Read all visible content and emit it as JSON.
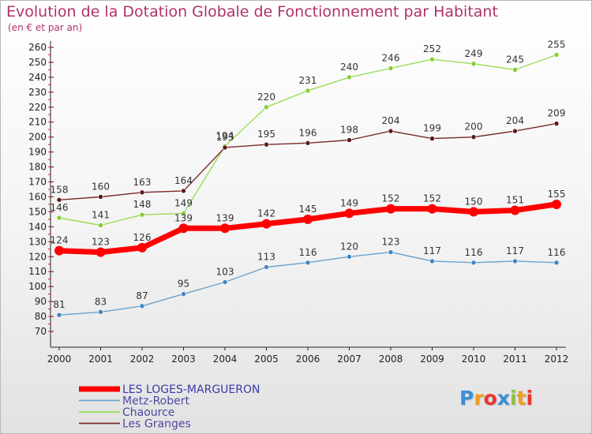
{
  "chart_data": {
    "type": "line",
    "title": "Evolution de la Dotation Globale de Fonctionnement par Habitant",
    "subtitle": "(en € et par an)",
    "xlabel": "",
    "ylabel": "",
    "x": [
      2000,
      2001,
      2002,
      2003,
      2004,
      2005,
      2006,
      2007,
      2008,
      2009,
      2010,
      2011,
      2012
    ],
    "ylim": [
      70,
      260
    ],
    "ytick_step": 10,
    "grid": false,
    "legend_position": "bottom-left",
    "series": [
      {
        "name": "Chaource",
        "color": "#99dd55",
        "marker": "#88cc33",
        "values": [
          146,
          141,
          148,
          149,
          194,
          220,
          231,
          240,
          246,
          252,
          249,
          245,
          255
        ]
      },
      {
        "name": "Les Granges",
        "color": "#7a2a2a",
        "marker": "#5c1a1a",
        "values": [
          158,
          160,
          163,
          164,
          193,
          195,
          196,
          198,
          204,
          199,
          200,
          204,
          209
        ]
      },
      {
        "name": "Metz-Robert",
        "color": "#6aa2cc",
        "marker": "#3f86c4",
        "values": [
          81,
          83,
          87,
          95,
          103,
          113,
          116,
          120,
          123,
          117,
          116,
          117,
          116
        ]
      },
      {
        "name": "LES LOGES-MARGUERON",
        "color": "#ff0000",
        "marker": "#ff0000",
        "values": [
          124,
          123,
          126,
          139,
          139,
          142,
          145,
          149,
          152,
          152,
          150,
          151,
          155
        ]
      }
    ],
    "legend_order": [
      "LES LOGES-MARGUERON",
      "Metz-Robert",
      "Chaource",
      "Les Granges"
    ]
  },
  "brand": {
    "letters": [
      {
        "ch": "P",
        "color": "#3a8fd8"
      },
      {
        "ch": "r",
        "color": "#f39a1e"
      },
      {
        "ch": "o",
        "color": "#e8352b"
      },
      {
        "ch": "x",
        "color": "#3a8fd8"
      },
      {
        "ch": "i",
        "color": "#8cc43f"
      },
      {
        "ch": "t",
        "color": "#f39a1e"
      },
      {
        "ch": "i",
        "color": "#e8352b"
      }
    ]
  }
}
